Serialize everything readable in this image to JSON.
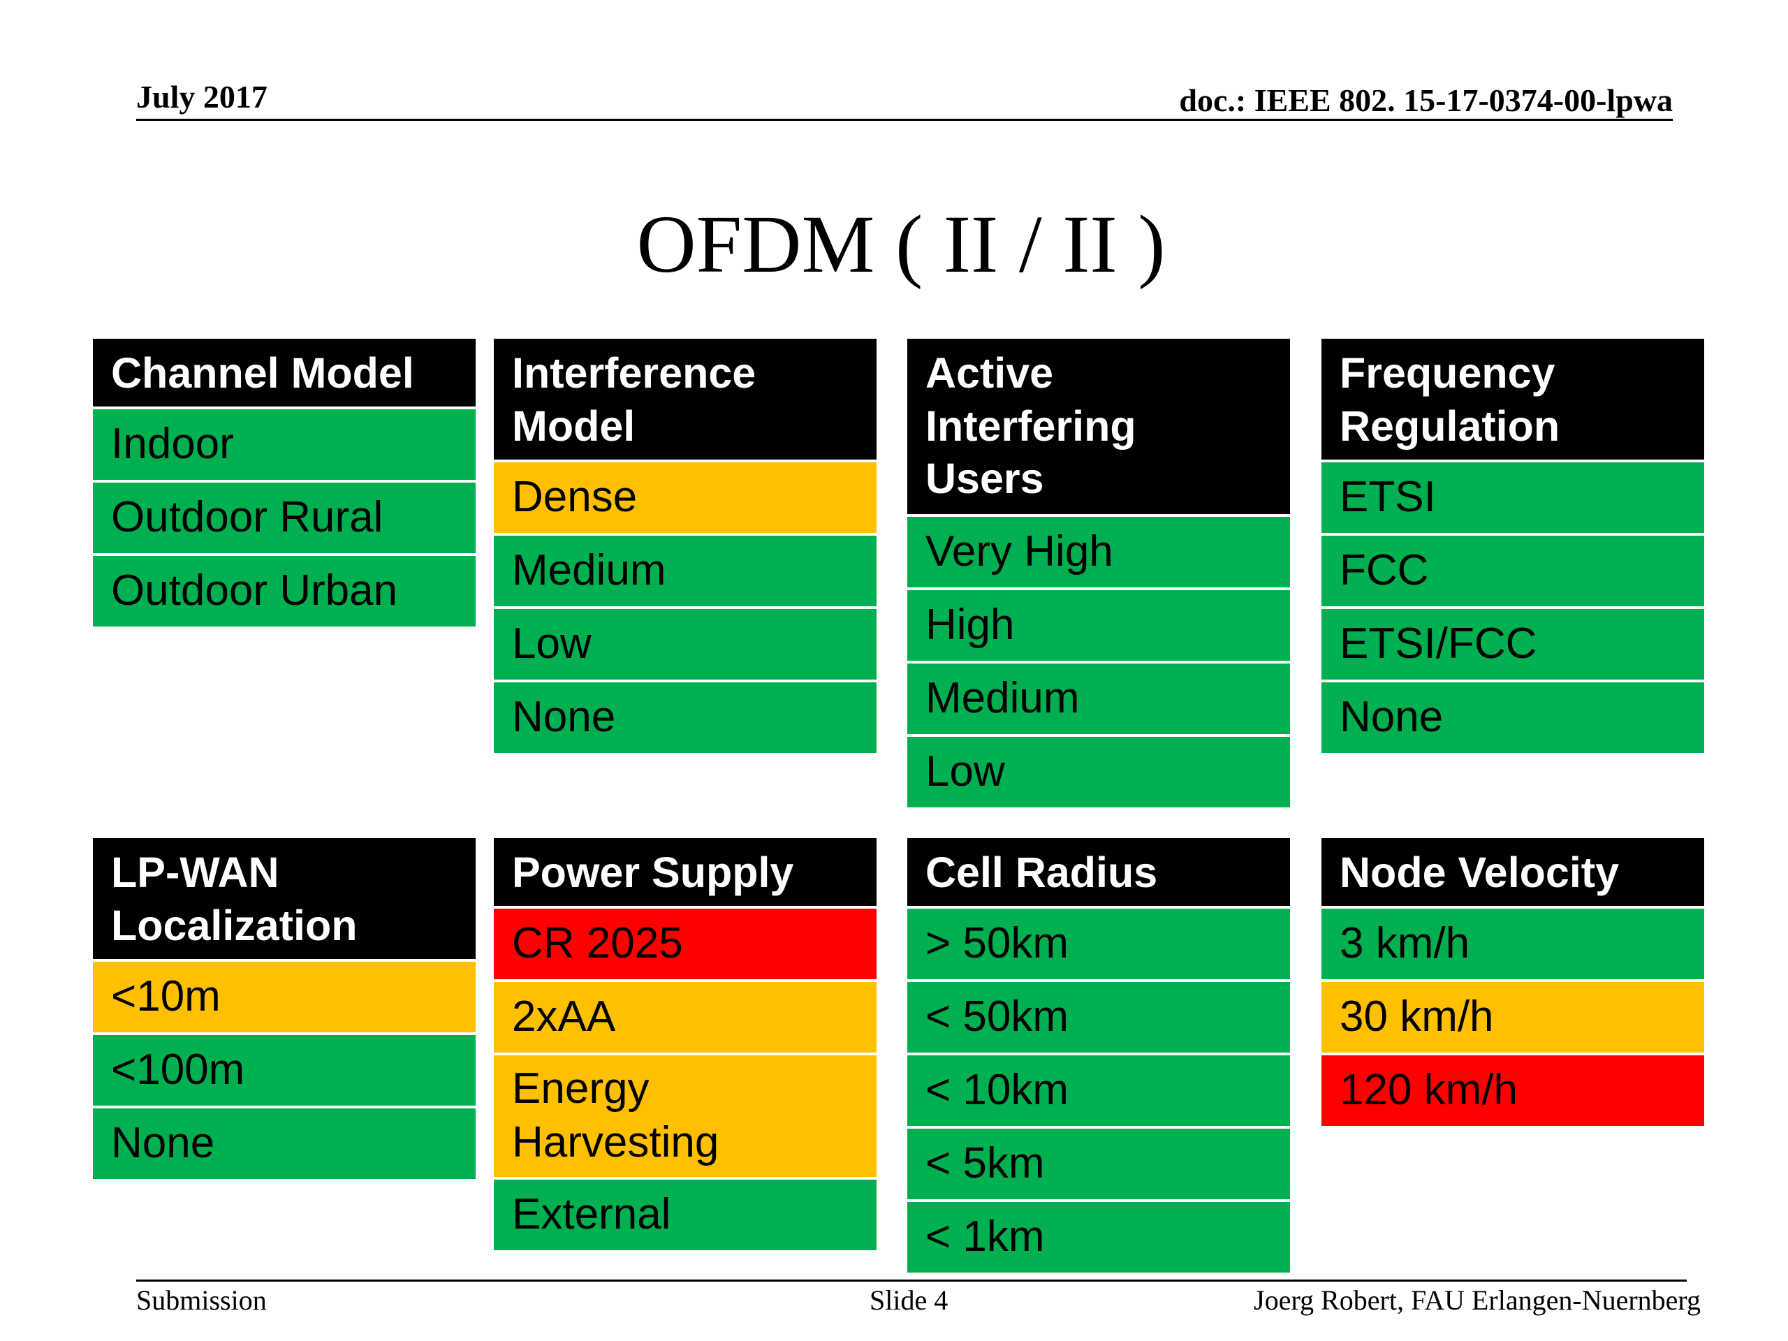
{
  "header": {
    "date": "July 2017",
    "doc": "doc.: IEEE 802. 15-17-0374-00-lpwa"
  },
  "title": "OFDM ( II / II )",
  "footer": {
    "left": "Submission",
    "center": "Slide 4",
    "right": "Joerg Robert, FAU Erlangen-Nuernberg"
  },
  "colors": {
    "green": "#00b050",
    "orange": "#ffc000",
    "red": "#ff0000",
    "header": "#000000"
  },
  "tables": [
    {
      "heading": "Channel Model",
      "items": [
        {
          "label": "Indoor",
          "color": "green"
        },
        {
          "label": "Outdoor Rural",
          "color": "green"
        },
        {
          "label": "Outdoor Urban",
          "color": "green"
        }
      ]
    },
    {
      "heading": "Interference\nModel",
      "items": [
        {
          "label": "Dense",
          "color": "orange"
        },
        {
          "label": "Medium",
          "color": "green"
        },
        {
          "label": "Low",
          "color": "green"
        },
        {
          "label": "None",
          "color": "green"
        }
      ]
    },
    {
      "heading": "Active\nInterfering\nUsers",
      "items": [
        {
          "label": "Very High",
          "color": "green"
        },
        {
          "label": "High",
          "color": "green"
        },
        {
          "label": "Medium",
          "color": "green"
        },
        {
          "label": "Low",
          "color": "green"
        }
      ]
    },
    {
      "heading": "Frequency\nRegulation",
      "items": [
        {
          "label": "ETSI",
          "color": "green"
        },
        {
          "label": "FCC",
          "color": "green"
        },
        {
          "label": "ETSI/FCC",
          "color": "green"
        },
        {
          "label": "None",
          "color": "green"
        }
      ]
    },
    {
      "heading": "LP-WAN\nLocalization",
      "items": [
        {
          "label": "<10m",
          "color": "orange"
        },
        {
          "label": "<100m",
          "color": "green"
        },
        {
          "label": "None",
          "color": "green"
        }
      ]
    },
    {
      "heading": "Power Supply",
      "items": [
        {
          "label": "CR 2025",
          "color": "red"
        },
        {
          "label": "2xAA",
          "color": "orange"
        },
        {
          "label": "Energy\nHarvesting",
          "color": "orange"
        },
        {
          "label": "External",
          "color": "green"
        }
      ]
    },
    {
      "heading": "Cell Radius",
      "items": [
        {
          "label": "> 50km",
          "color": "green"
        },
        {
          "label": "< 50km",
          "color": "green"
        },
        {
          "label": "< 10km",
          "color": "green"
        },
        {
          "label": "< 5km",
          "color": "green"
        },
        {
          "label": "< 1km",
          "color": "green"
        }
      ]
    },
    {
      "heading": "Node Velocity",
      "items": [
        {
          "label": "3 km/h",
          "color": "green"
        },
        {
          "label": "30 km/h",
          "color": "orange"
        },
        {
          "label": "120 km/h",
          "color": "red"
        }
      ]
    }
  ]
}
